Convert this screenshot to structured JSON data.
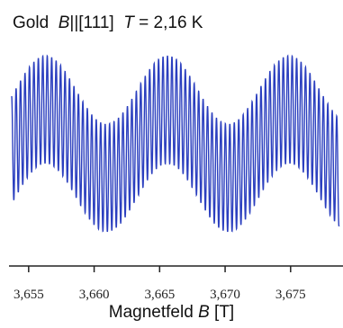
{
  "title": {
    "material": "Gold",
    "field_symbol": "B",
    "orientation": "||[111]",
    "temp_symbol": "T",
    "temp_value": "= 2,16 K"
  },
  "xlabel": {
    "prefix": "Magnetfeld ",
    "symbol": "B",
    "unit": " [T]"
  },
  "chart_data": {
    "type": "line",
    "x_ticks": [
      "3,655",
      "3,660",
      "3,665",
      "3,670",
      "3,675"
    ],
    "x_tick_values": [
      3.655,
      3.66,
      3.665,
      3.67,
      3.675
    ],
    "xlim": [
      3.6535,
      3.679
    ],
    "x_range": [
      3.6535,
      3.679
    ],
    "y_axis_shown": false,
    "grid": false,
    "line_color": "#2b3fbf",
    "slow_period_T": 0.0093,
    "slow_maxima_B": [
      3.6563,
      3.6655,
      3.6748
    ],
    "fast_oscillation_count": 75,
    "description": "de Haas-van Alphen oscillation: fast oscillation modulated by a slower belly oscillation"
  }
}
